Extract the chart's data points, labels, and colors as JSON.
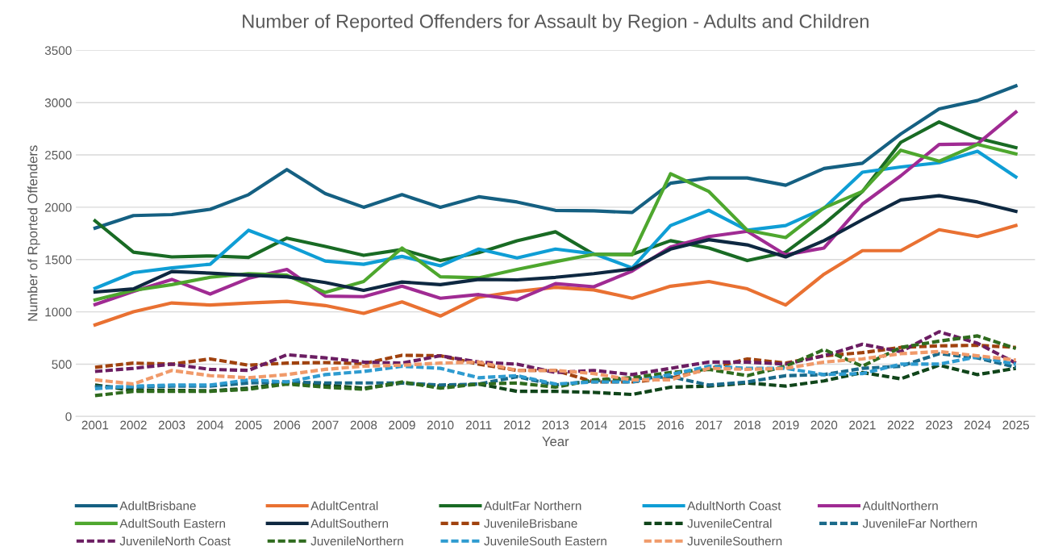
{
  "chart_data": {
    "type": "line",
    "title": "Number of Reported Offenders for Assault by Region - Adults and Children",
    "xlabel": "Year",
    "ylabel": "Number of Rported Offenders",
    "categories": [
      "2001",
      "2002",
      "2003",
      "2004",
      "2005",
      "2006",
      "2007",
      "2008",
      "2009",
      "2010",
      "2011",
      "2012",
      "2013",
      "2014",
      "2015",
      "2016",
      "2017",
      "2018",
      "2019",
      "2020",
      "2021",
      "2022",
      "2023",
      "2024",
      "2025"
    ],
    "ylim": [
      0,
      3500
    ],
    "yticks": [
      0,
      500,
      1000,
      1500,
      2000,
      2500,
      3000,
      3500
    ],
    "grid": "y",
    "legend": "bottom",
    "marker": "none",
    "series": [
      {
        "name": "AdultBrisbane",
        "color": "#156082",
        "line_style": "solid",
        "values": [
          1800,
          1920,
          1930,
          1980,
          2120,
          2360,
          2130,
          2000,
          2120,
          2000,
          2100,
          2050,
          1970,
          1965,
          1950,
          2230,
          2280,
          2280,
          2210,
          2370,
          2420,
          2700,
          2940,
          3020,
          3160
        ]
      },
      {
        "name": "AdultCentral",
        "color": "#e97132",
        "line_style": "solid",
        "values": [
          875,
          1000,
          1085,
          1065,
          1085,
          1100,
          1060,
          985,
          1095,
          960,
          1140,
          1195,
          1235,
          1210,
          1130,
          1245,
          1290,
          1220,
          1065,
          1360,
          1585,
          1585,
          1785,
          1720,
          1825
        ]
      },
      {
        "name": "AdultFar Northern",
        "color": "#196b24",
        "line_style": "solid",
        "values": [
          1870,
          1570,
          1525,
          1535,
          1520,
          1705,
          1625,
          1540,
          1595,
          1490,
          1565,
          1680,
          1765,
          1550,
          1550,
          1680,
          1610,
          1490,
          1570,
          1840,
          2150,
          2620,
          2815,
          2660,
          2570
        ]
      },
      {
        "name": "AdultNorth Coast",
        "color": "#0f9ed5",
        "line_style": "solid",
        "values": [
          1225,
          1375,
          1420,
          1455,
          1780,
          1640,
          1485,
          1455,
          1530,
          1440,
          1600,
          1515,
          1600,
          1555,
          1420,
          1825,
          1970,
          1780,
          1825,
          1990,
          2335,
          2385,
          2425,
          2535,
          2290
        ]
      },
      {
        "name": "AdultNorthern",
        "color": "#a02b93",
        "line_style": "solid",
        "values": [
          1070,
          1195,
          1310,
          1170,
          1320,
          1405,
          1150,
          1145,
          1245,
          1130,
          1165,
          1115,
          1270,
          1240,
          1390,
          1620,
          1720,
          1770,
          1545,
          1610,
          2030,
          2300,
          2600,
          2605,
          2910
        ]
      },
      {
        "name": "AdultSouth Eastern",
        "color": "#4ea72e",
        "line_style": "solid",
        "values": [
          1115,
          1205,
          1260,
          1330,
          1365,
          1350,
          1185,
          1290,
          1610,
          1335,
          1325,
          1405,
          1480,
          1550,
          1545,
          2320,
          2150,
          1780,
          1710,
          1995,
          2150,
          2545,
          2440,
          2600,
          2510
        ]
      },
      {
        "name": "AdultSouthern",
        "color": "#0e2841",
        "line_style": "solid",
        "values": [
          1190,
          1220,
          1385,
          1370,
          1350,
          1335,
          1280,
          1205,
          1285,
          1260,
          1310,
          1305,
          1330,
          1365,
          1410,
          1600,
          1690,
          1640,
          1525,
          1680,
          1880,
          2070,
          2110,
          2050,
          1960
        ]
      },
      {
        "name": "JuvenileBrisbane",
        "color": "#a0420e",
        "line_style": "dashed",
        "values": [
          470,
          510,
          500,
          550,
          490,
          510,
          515,
          505,
          585,
          580,
          500,
          440,
          440,
          330,
          330,
          365,
          455,
          550,
          510,
          580,
          610,
          660,
          675,
          680,
          660
        ]
      },
      {
        "name": "JuvenileCentral",
        "color": "#10451a",
        "line_style": "dashed",
        "values": [
          300,
          250,
          250,
          245,
          270,
          320,
          300,
          270,
          320,
          290,
          310,
          240,
          240,
          230,
          210,
          280,
          290,
          320,
          290,
          340,
          420,
          360,
          490,
          400,
          460
        ]
      },
      {
        "name": "JuvenileFar Northern",
        "color": "#1a6a8a",
        "line_style": "dashed",
        "values": [
          285,
          280,
          290,
          290,
          320,
          330,
          320,
          320,
          320,
          300,
          310,
          380,
          300,
          340,
          360,
          380,
          300,
          330,
          390,
          400,
          460,
          480,
          600,
          560,
          470
        ]
      },
      {
        "name": "JuvenileNorth Coast",
        "color": "#6b1d62",
        "line_style": "dashed",
        "values": [
          430,
          460,
          500,
          450,
          440,
          590,
          560,
          520,
          510,
          580,
          520,
          500,
          420,
          440,
          400,
          460,
          520,
          520,
          500,
          580,
          690,
          620,
          810,
          700,
          510
        ]
      },
      {
        "name": "JuvenileNorthern",
        "color": "#2f6b1e",
        "line_style": "dashed",
        "values": [
          200,
          240,
          240,
          240,
          260,
          310,
          280,
          260,
          330,
          270,
          310,
          320,
          280,
          350,
          370,
          420,
          450,
          390,
          480,
          640,
          480,
          660,
          720,
          770,
          650
        ]
      },
      {
        "name": "JuvenileSouth Eastern",
        "color": "#2e9bd0",
        "line_style": "dashed",
        "values": [
          265,
          290,
          300,
          300,
          350,
          330,
          400,
          430,
          480,
          460,
          370,
          390,
          310,
          330,
          330,
          400,
          480,
          460,
          460,
          400,
          410,
          500,
          500,
          570,
          500
        ]
      },
      {
        "name": "JuvenileSouthern",
        "color": "#f09a6a",
        "line_style": "dashed",
        "values": [
          350,
          310,
          440,
          390,
          370,
          400,
          450,
          480,
          490,
          510,
          520,
          440,
          440,
          410,
          350,
          350,
          460,
          450,
          460,
          520,
          550,
          600,
          620,
          580,
          540
        ]
      }
    ]
  }
}
